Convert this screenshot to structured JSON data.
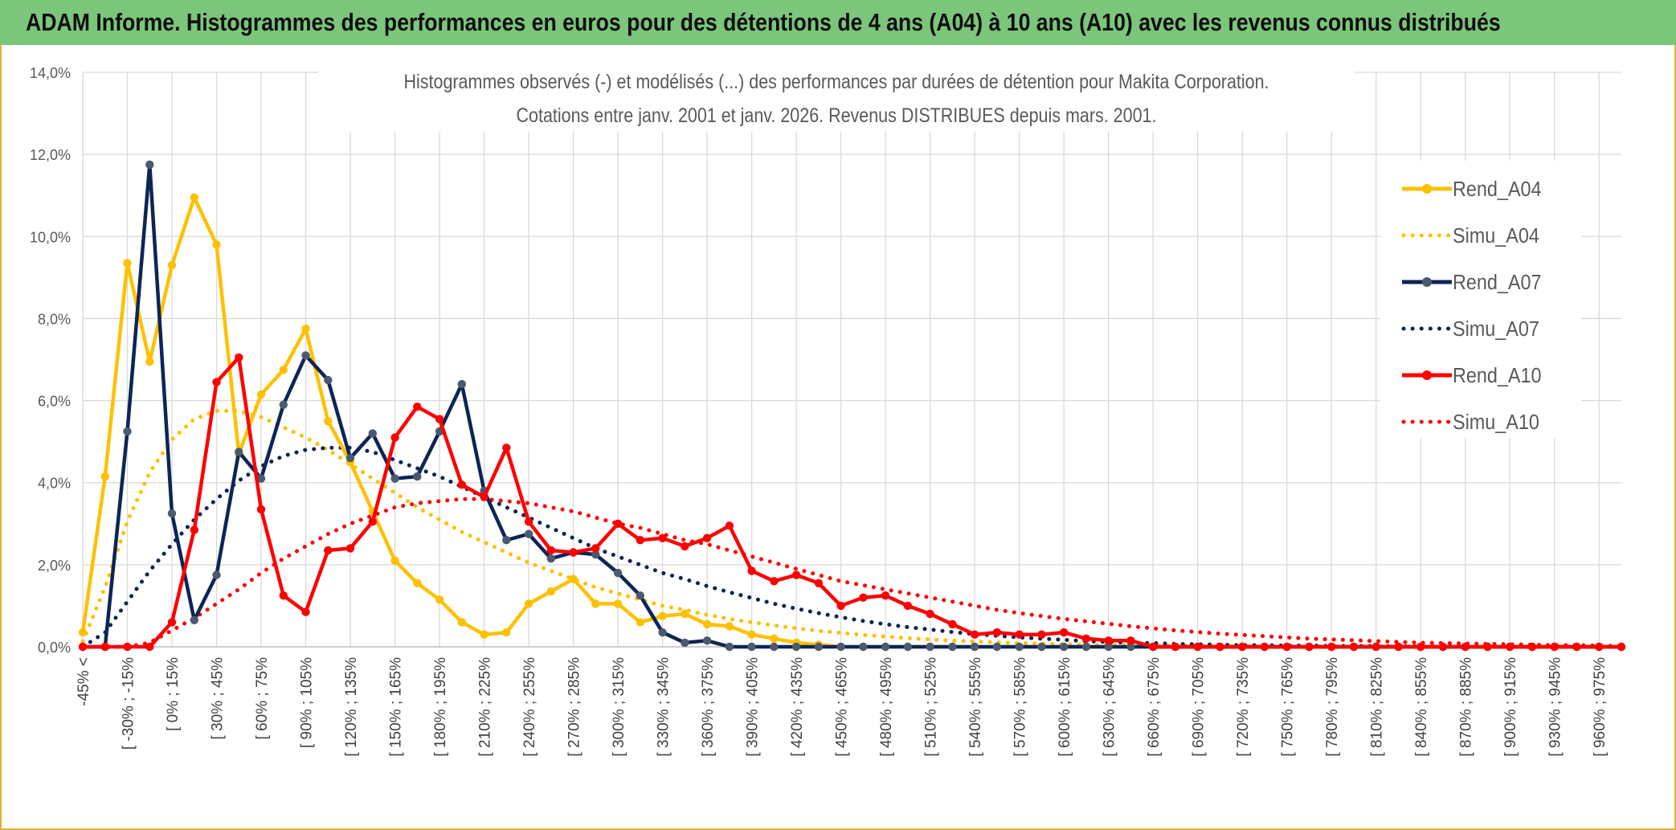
{
  "page": {
    "title": "ADAM Informe. Histogrammes des performances en euros pour des détentions de 4 ans (A04) à 10 ans (A10) avec les revenus connus distribués"
  },
  "colors": {
    "banner": "#7bc67a",
    "A04": "#ffc000",
    "A07": "#0d2556",
    "A10": "#ff0000",
    "marker_A07": "#4a5a70",
    "grid": "#d9d9d9"
  },
  "chart_data": {
    "type": "line",
    "title": "Histogrammes observés (-) et modélisés (...) des performances par durées de détention pour Makita Corporation.",
    "subtitle": "Cotations entre janv. 2001 et janv. 2026. Revenus DISTRIBUES depuis mars. 2001.",
    "xlabel": "",
    "ylabel": "",
    "ylim": [
      0,
      14
    ],
    "y_ticks": [
      "0,0%",
      "2,0%",
      "4,0%",
      "6,0%",
      "8,0%",
      "10,0%",
      "12,0%",
      "14,0%"
    ],
    "grid": true,
    "legend_position": "right",
    "x_tick_labels": [
      "-45% <",
      "[ -30% ; -15%",
      "[ 0% ; 15%",
      "[ 30% ; 45%",
      "[ 60% ; 75%",
      "[ 90% ; 105%",
      "[ 120% ; 135%",
      "[ 150% ; 165%",
      "[ 180% ; 195%",
      "[ 210% ; 225%",
      "[ 240% ; 255%",
      "[ 270% ; 285%",
      "[ 300% ; 315%",
      "[ 330% ; 345%",
      "[ 360% ; 375%",
      "[ 390% ; 405%",
      "[ 420% ; 435%",
      "[ 450% ; 465%",
      "[ 480% ; 495%",
      "[ 510% ; 525%",
      "[ 540% ; 555%",
      "[ 570% ; 585%",
      "[ 600% ; 615%",
      "[ 630% ; 645%",
      "[ 660% ; 675%",
      "[ 690% ; 705%",
      "[ 720% ; 735%",
      "[ 750% ; 765%",
      "[ 780% ; 795%",
      "[ 810% ; 825%",
      "[ 840% ; 855%",
      "[ 870% ; 885%",
      "[ 900% ; 915%",
      "[ 930% ; 945%",
      "[ 960% ; 975%"
    ],
    "series": [
      {
        "name": "Rend_A04",
        "style": "solid",
        "color": "#ffc000",
        "values": [
          0.35,
          4.15,
          9.35,
          6.95,
          9.3,
          10.95,
          9.8,
          4.7,
          6.15,
          6.75,
          7.75,
          5.5,
          4.5,
          3.3,
          2.1,
          1.55,
          1.15,
          0.6,
          0.3,
          0.35,
          1.05,
          1.35,
          1.65,
          1.05,
          1.05,
          0.6,
          0.75,
          0.8,
          0.55,
          0.5,
          0.3,
          0.2,
          0.1,
          0.05,
          0,
          0,
          0,
          0,
          0,
          0,
          0,
          0,
          0,
          0,
          0,
          0,
          0,
          0,
          0,
          0,
          0,
          0,
          0,
          0,
          0,
          0,
          0,
          0,
          0,
          0,
          0,
          0,
          0,
          0,
          0,
          0,
          0,
          0,
          0,
          0
        ]
      },
      {
        "name": "Simu_A04",
        "style": "dotted",
        "color": "#ffc000",
        "values": [
          0.13,
          1.45,
          3.05,
          4.25,
          5.05,
          5.55,
          5.75,
          5.75,
          5.6,
          5.35,
          5.1,
          4.8,
          4.45,
          4.1,
          3.75,
          3.4,
          3.1,
          2.8,
          2.55,
          2.3,
          2.05,
          1.85,
          1.65,
          1.45,
          1.3,
          1.15,
          1.0,
          0.9,
          0.78,
          0.68,
          0.6,
          0.52,
          0.45,
          0.39,
          0.34,
          0.29,
          0.25,
          0.21,
          0.18,
          0.15,
          0.13,
          0.11,
          0.09,
          0.08,
          0.06,
          0.05,
          0.04,
          0.04,
          0.03,
          0.03,
          0.02,
          0.02,
          0.02,
          0.01,
          0.01,
          0.01,
          0.01,
          0.01,
          0.01,
          0.01,
          0,
          0,
          0,
          0,
          0,
          0,
          0,
          0,
          0,
          0
        ]
      },
      {
        "name": "Rend_A07",
        "style": "solid",
        "color": "#0d2556",
        "marker": "#4a5a70",
        "values": [
          0,
          0,
          5.25,
          11.75,
          3.25,
          0.65,
          1.75,
          4.75,
          4.1,
          5.9,
          7.1,
          6.5,
          4.6,
          5.2,
          4.1,
          4.15,
          5.25,
          6.4,
          3.8,
          2.6,
          2.75,
          2.15,
          2.3,
          2.25,
          1.8,
          1.25,
          0.35,
          0.1,
          0.15,
          0,
          0,
          0,
          0,
          0,
          0,
          0,
          0,
          0,
          0,
          0,
          0,
          0,
          0,
          0,
          0,
          0,
          0,
          0,
          0,
          0,
          0,
          0,
          0,
          0,
          0,
          0,
          0,
          0,
          0,
          0,
          0,
          0,
          0,
          0,
          0,
          0,
          0,
          0,
          0,
          0
        ]
      },
      {
        "name": "Simu_A07",
        "style": "dotted",
        "color": "#0d2556",
        "values": [
          0,
          0.35,
          1.1,
          1.85,
          2.5,
          3.1,
          3.6,
          4.05,
          4.4,
          4.65,
          4.8,
          4.85,
          4.85,
          4.75,
          4.55,
          4.35,
          4.15,
          3.9,
          3.65,
          3.4,
          3.15,
          2.9,
          2.65,
          2.4,
          2.2,
          2.0,
          1.8,
          1.65,
          1.48,
          1.33,
          1.19,
          1.05,
          0.93,
          0.82,
          0.72,
          0.63,
          0.55,
          0.48,
          0.42,
          0.36,
          0.31,
          0.27,
          0.23,
          0.2,
          0.17,
          0.14,
          0.12,
          0.1,
          0.09,
          0.07,
          0.06,
          0.05,
          0.04,
          0.04,
          0.03,
          0.03,
          0.02,
          0.02,
          0.02,
          0.01,
          0.01,
          0.01,
          0.01,
          0.01,
          0,
          0,
          0,
          0,
          0,
          0
        ]
      },
      {
        "name": "Rend_A10",
        "style": "solid",
        "color": "#ff0000",
        "values": [
          0,
          0,
          0,
          0,
          0.6,
          2.85,
          6.45,
          7.05,
          3.35,
          1.25,
          0.85,
          2.35,
          2.4,
          3.05,
          5.1,
          5.85,
          5.55,
          3.95,
          3.65,
          4.85,
          3.05,
          2.35,
          2.3,
          2.4,
          3.0,
          2.6,
          2.65,
          2.45,
          2.65,
          2.95,
          1.85,
          1.6,
          1.75,
          1.55,
          1.0,
          1.2,
          1.25,
          1.0,
          0.8,
          0.55,
          0.3,
          0.35,
          0.3,
          0.3,
          0.35,
          0.2,
          0.15,
          0.15,
          0,
          0,
          0,
          0,
          0,
          0,
          0,
          0,
          0,
          0,
          0,
          0,
          0,
          0,
          0,
          0,
          0,
          0,
          0,
          0,
          0,
          0
        ]
      },
      {
        "name": "Simu_A10",
        "style": "dotted",
        "color": "#ff0000",
        "values": [
          0,
          0,
          0,
          0.1,
          0.4,
          0.7,
          1.05,
          1.4,
          1.8,
          2.15,
          2.45,
          2.75,
          3.0,
          3.2,
          3.4,
          3.5,
          3.55,
          3.6,
          3.6,
          3.55,
          3.5,
          3.4,
          3.3,
          3.15,
          3.0,
          2.9,
          2.75,
          2.6,
          2.5,
          2.35,
          2.2,
          2.05,
          1.9,
          1.75,
          1.6,
          1.5,
          1.4,
          1.3,
          1.2,
          1.1,
          1.0,
          0.9,
          0.82,
          0.75,
          0.68,
          0.62,
          0.56,
          0.5,
          0.45,
          0.4,
          0.36,
          0.32,
          0.29,
          0.26,
          0.23,
          0.2,
          0.18,
          0.16,
          0.14,
          0.12,
          0.1,
          0.09,
          0.08,
          0.07,
          0.06,
          0.05,
          0.04,
          0.04,
          0.03,
          0.02
        ]
      }
    ]
  }
}
